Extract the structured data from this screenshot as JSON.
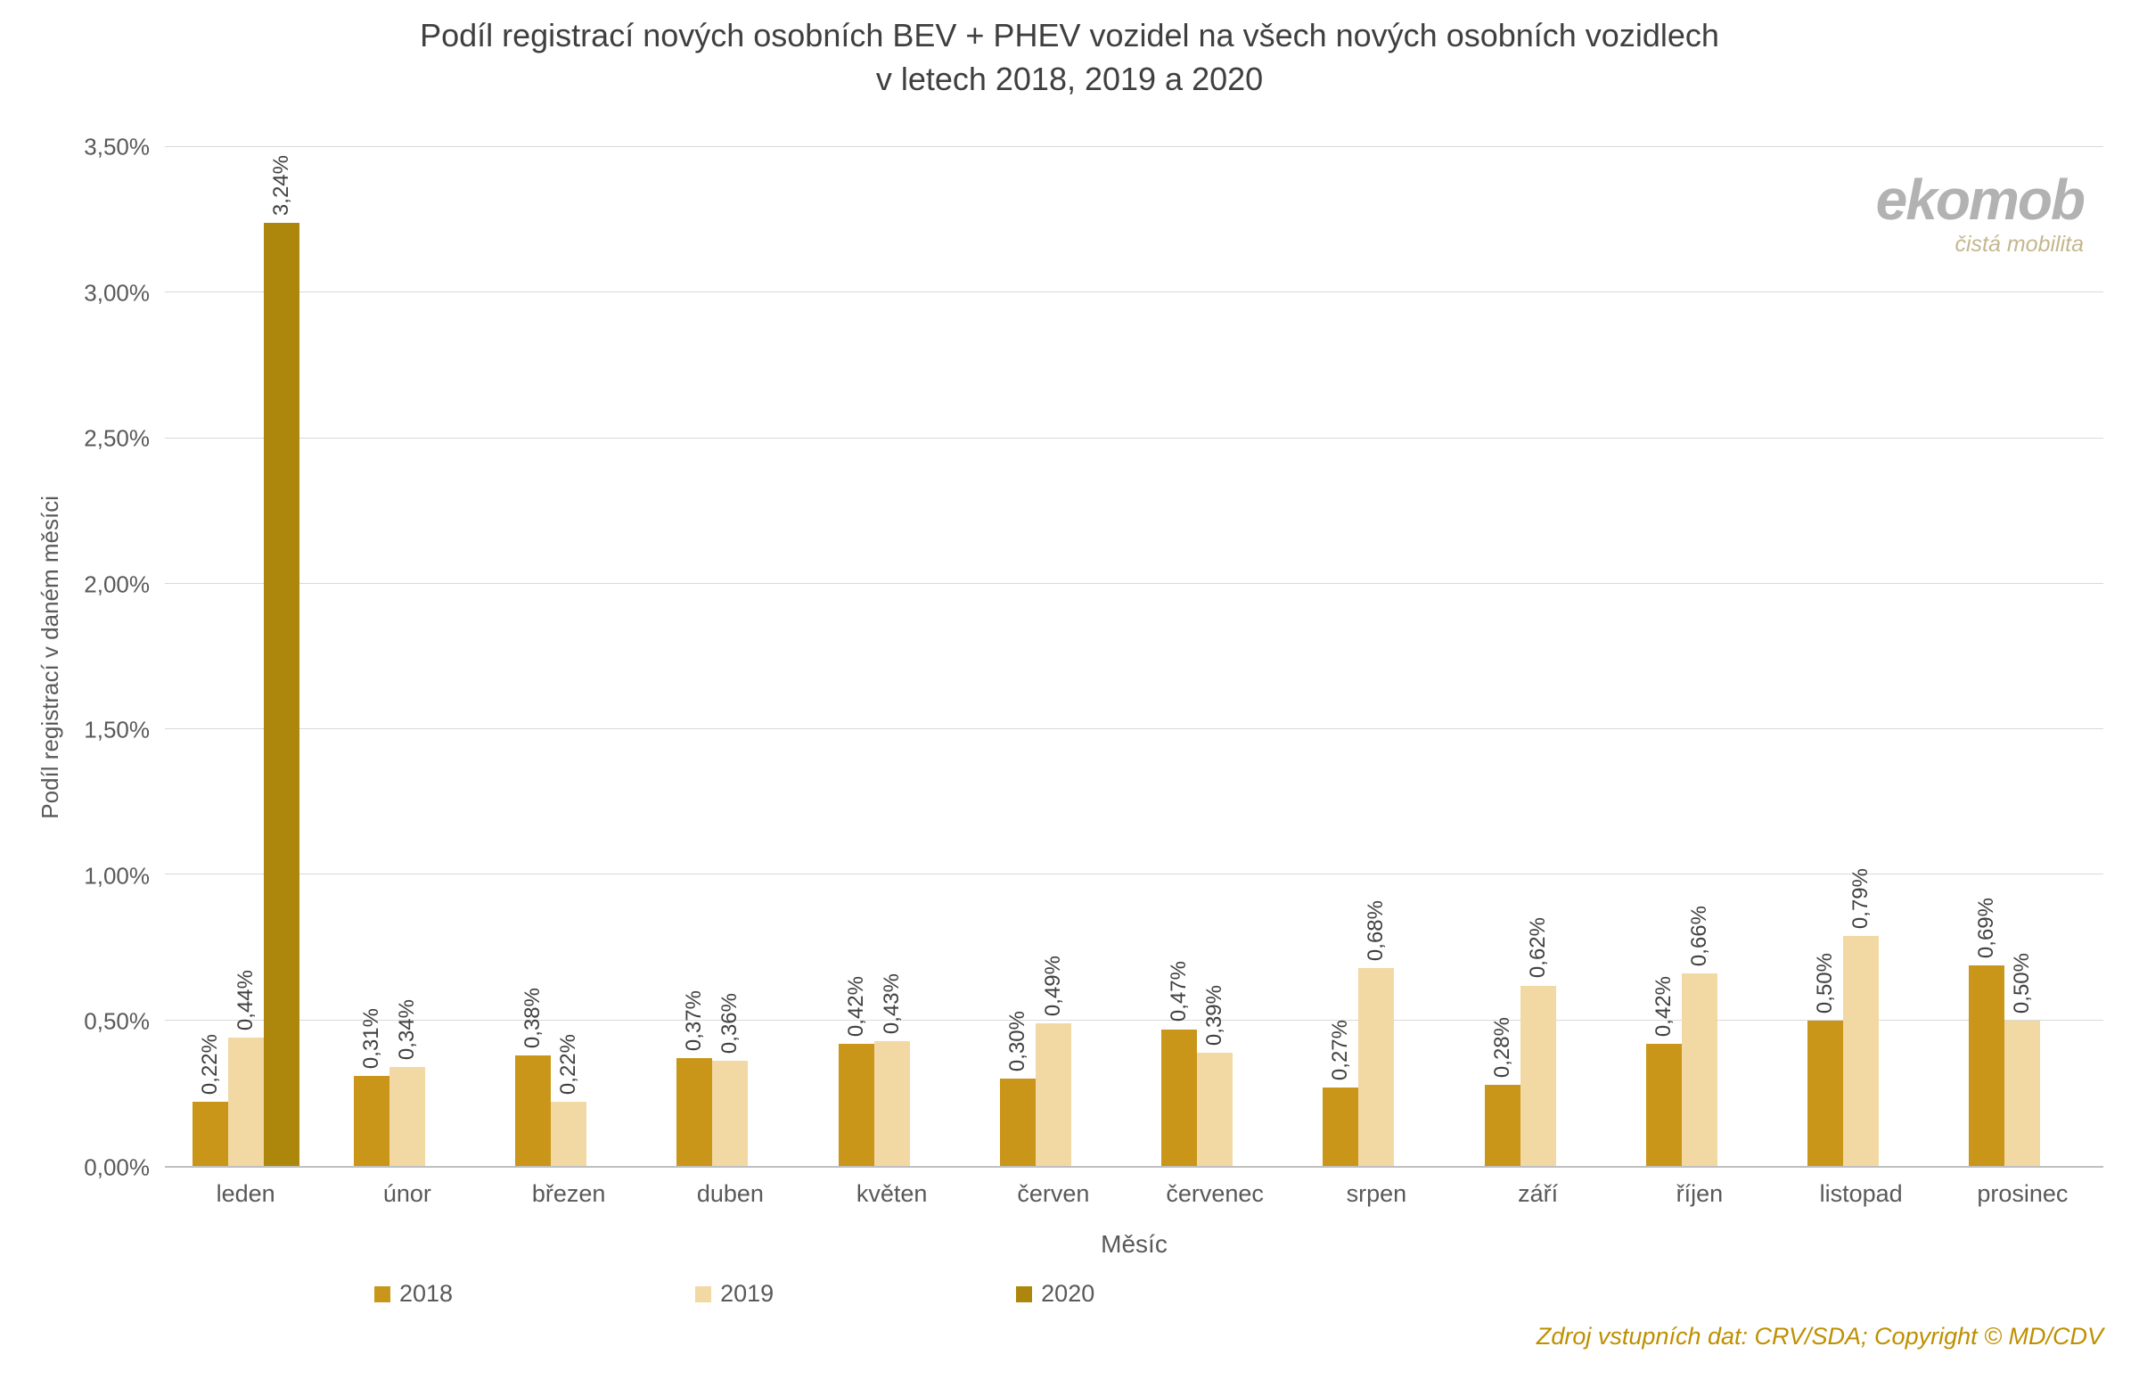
{
  "title": {
    "line1": "Podíl registrací nových osobních BEV + PHEV vozidel na všech nových osobních vozidlech",
    "line2": "v letech 2018, 2019 a 2020"
  },
  "logo": {
    "text": "ekomob",
    "tagline": "čistá mobilita"
  },
  "source_note": "Zdroj vstupních dat: CRV/SDA; Copyright © MD/CDV",
  "chart_data": {
    "type": "bar",
    "title": "Podíl registrací nových osobních BEV + PHEV vozidel na všech nových osobních vozidlech v letech 2018, 2019 a 2020",
    "xlabel": "Měsíc",
    "ylabel": "Podíl registrací v daném měsíci",
    "ylim": [
      0,
      3.5
    ],
    "ytick_step": 0.5,
    "ytick_labels": [
      "0,00%",
      "0,50%",
      "1,00%",
      "1,50%",
      "2,00%",
      "2,50%",
      "3,00%",
      "3,50%"
    ],
    "grid": true,
    "legend_position": "bottom",
    "data_label_rotation": -90,
    "data_label_format": "0,00%",
    "categories": [
      "leden",
      "únor",
      "březen",
      "duben",
      "květen",
      "červen",
      "červenec",
      "srpen",
      "září",
      "říjen",
      "listopad",
      "prosinec"
    ],
    "series": [
      {
        "name": "2018",
        "color": "#C9961A",
        "values": [
          0.22,
          0.31,
          0.38,
          0.37,
          0.42,
          0.3,
          0.47,
          0.27,
          0.28,
          0.42,
          0.5,
          0.69
        ],
        "labels": [
          "0,22%",
          "0,31%",
          "0,38%",
          "0,37%",
          "0,42%",
          "0,30%",
          "0,47%",
          "0,27%",
          "0,28%",
          "0,42%",
          "0,50%",
          "0,69%"
        ]
      },
      {
        "name": "2019",
        "color": "#F2D8A3",
        "values": [
          0.44,
          0.34,
          0.22,
          0.36,
          0.43,
          0.49,
          0.39,
          0.68,
          0.62,
          0.66,
          0.79,
          0.5
        ],
        "labels": [
          "0,44%",
          "0,34%",
          "0,22%",
          "0,36%",
          "0,43%",
          "0,49%",
          "0,39%",
          "0,68%",
          "0,62%",
          "0,66%",
          "0,79%",
          "0,50%"
        ]
      },
      {
        "name": "2020",
        "color": "#AC870C",
        "values": [
          3.24,
          null,
          null,
          null,
          null,
          null,
          null,
          null,
          null,
          null,
          null,
          null
        ],
        "labels": [
          "3,24%",
          null,
          null,
          null,
          null,
          null,
          null,
          null,
          null,
          null,
          null,
          null
        ]
      }
    ]
  }
}
